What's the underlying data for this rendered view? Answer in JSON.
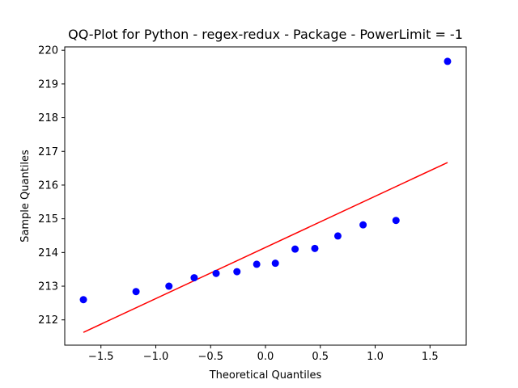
{
  "chart_data": {
    "type": "scatter",
    "title": "QQ-Plot for Python - regex-redux - Package - PowerLimit = -1",
    "xlabel": "Theoretical Quantiles",
    "ylabel": "Sample Quantiles",
    "xlim": [
      -1.83,
      1.83
    ],
    "ylim": [
      211.25,
      220.1
    ],
    "grid": false,
    "xticks": [
      -1.5,
      -1.0,
      -0.5,
      0.0,
      0.5,
      1.0,
      1.5
    ],
    "xtick_labels": [
      "−1.5",
      "−1.0",
      "−0.5",
      "0.0",
      "0.5",
      "1.0",
      "1.5"
    ],
    "yticks": [
      212,
      213,
      214,
      215,
      216,
      217,
      218,
      219,
      220
    ],
    "ytick_labels": [
      "212",
      "213",
      "214",
      "215",
      "216",
      "217",
      "218",
      "219",
      "220"
    ],
    "series": [
      {
        "kind": "points",
        "color": "#0000ff",
        "x": [
          -1.66,
          -1.18,
          -0.88,
          -0.65,
          -0.45,
          -0.26,
          -0.08,
          0.09,
          0.27,
          0.45,
          0.66,
          0.89,
          1.19,
          1.66
        ],
        "y": [
          212.6,
          212.84,
          213.0,
          213.25,
          213.38,
          213.43,
          213.65,
          213.68,
          214.1,
          214.12,
          214.49,
          214.82,
          214.95,
          219.67
        ]
      },
      {
        "kind": "line",
        "color": "#ff0000",
        "x": [
          -1.66,
          1.66
        ],
        "y": [
          211.63,
          216.67
        ]
      }
    ]
  }
}
